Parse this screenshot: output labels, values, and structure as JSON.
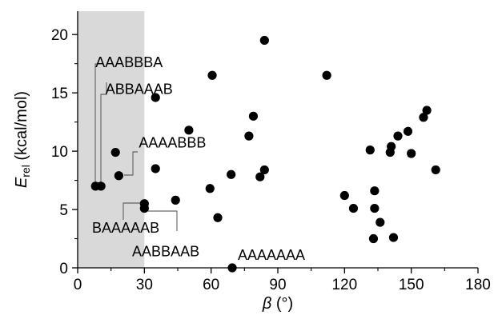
{
  "chart_data": {
    "type": "scatter",
    "title": "",
    "xlabel": {
      "symbol": "β",
      "unit": " (°)"
    },
    "ylabel": {
      "symbol": "E",
      "subscript": "rel",
      "unit": " (kcal/mol)"
    },
    "xlim": [
      0,
      180
    ],
    "ylim": [
      0,
      22
    ],
    "xticks": [
      0,
      30,
      60,
      90,
      120,
      150,
      180
    ],
    "yticks": [
      0,
      5,
      10,
      15,
      20
    ],
    "grid": false,
    "legend": "none",
    "shaded_region": {
      "x": [
        0,
        30
      ],
      "color": "#d9d9d9"
    },
    "marker_color": "#000000",
    "points": [
      {
        "x": 8,
        "y": 7.0
      },
      {
        "x": 10.5,
        "y": 7.0
      },
      {
        "x": 17,
        "y": 9.9
      },
      {
        "x": 18.5,
        "y": 7.9
      },
      {
        "x": 30,
        "y": 5.5
      },
      {
        "x": 30,
        "y": 5.1
      },
      {
        "x": 35,
        "y": 14.6
      },
      {
        "x": 35,
        "y": 8.5
      },
      {
        "x": 44,
        "y": 5.8
      },
      {
        "x": 50,
        "y": 11.8
      },
      {
        "x": 59.5,
        "y": 6.8
      },
      {
        "x": 60.5,
        "y": 16.5
      },
      {
        "x": 63,
        "y": 4.3
      },
      {
        "x": 69,
        "y": 8.0
      },
      {
        "x": 69.5,
        "y": 0.0
      },
      {
        "x": 77,
        "y": 11.3
      },
      {
        "x": 79,
        "y": 13.0
      },
      {
        "x": 82,
        "y": 7.8
      },
      {
        "x": 84,
        "y": 8.4
      },
      {
        "x": 84,
        "y": 19.5
      },
      {
        "x": 112,
        "y": 16.5
      },
      {
        "x": 120,
        "y": 6.2
      },
      {
        "x": 124,
        "y": 5.1
      },
      {
        "x": 131.5,
        "y": 10.1
      },
      {
        "x": 133,
        "y": 2.5
      },
      {
        "x": 133.5,
        "y": 6.6
      },
      {
        "x": 133.5,
        "y": 5.1
      },
      {
        "x": 136,
        "y": 3.9
      },
      {
        "x": 140.5,
        "y": 9.9
      },
      {
        "x": 141,
        "y": 10.4
      },
      {
        "x": 142,
        "y": 2.6
      },
      {
        "x": 144,
        "y": 11.3
      },
      {
        "x": 148.5,
        "y": 11.7
      },
      {
        "x": 150,
        "y": 9.8
      },
      {
        "x": 155.5,
        "y": 12.9
      },
      {
        "x": 157,
        "y": 13.5
      },
      {
        "x": 161,
        "y": 8.4
      }
    ],
    "annotations": [
      {
        "text": "AAABBBA",
        "x": 8,
        "y": 17.2
      },
      {
        "text": "ABBAAAB",
        "x": 12.5,
        "y": 14.9
      },
      {
        "text": "AAAABBB",
        "x": 27.5,
        "y": 10.3
      },
      {
        "text": "BAAAAAB",
        "x": 6.5,
        "y": 3.0
      },
      {
        "text": "AABBAAB",
        "x": 24.5,
        "y": 1.0
      },
      {
        "text": "AAAAAAA",
        "x": 72,
        "y": 0.7
      }
    ]
  }
}
